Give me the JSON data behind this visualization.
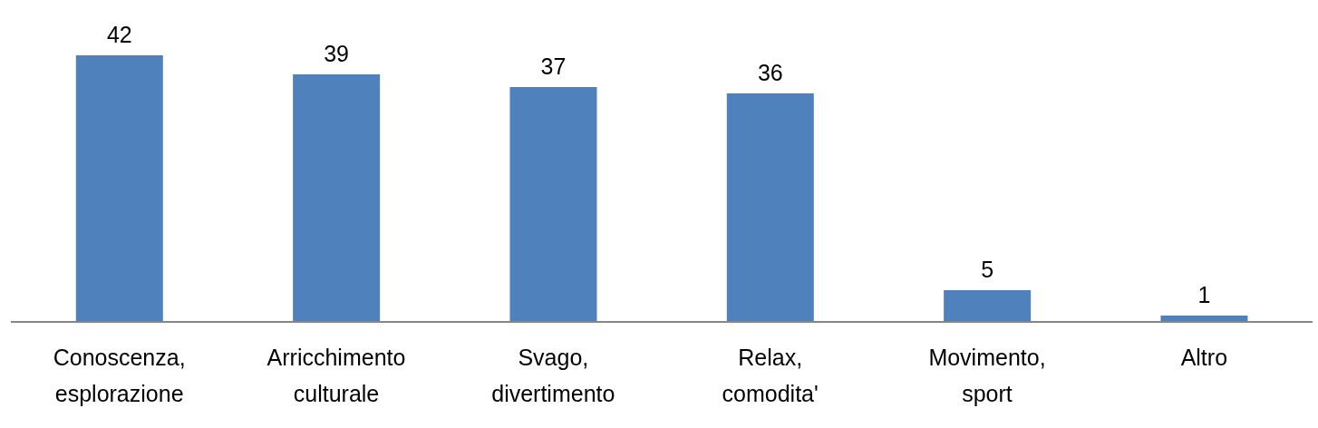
{
  "chart_data": {
    "type": "bar",
    "categories": [
      "Conoscenza, esplorazione",
      "Arricchimento culturale",
      "Svago, divertimento",
      "Relax, comodita'",
      "Movimento, sport",
      "Altro"
    ],
    "values": [
      42,
      39,
      37,
      36,
      5,
      1
    ],
    "color": "#4f81bd",
    "data_labels": true
  }
}
